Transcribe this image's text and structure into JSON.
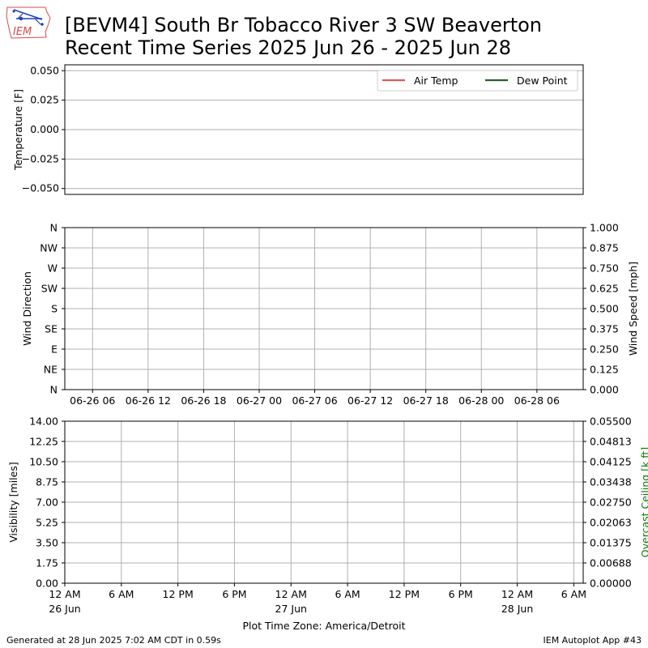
{
  "header": {
    "title_line1": "[BEVM4] South Br Tobacco River 3 SW Beaverton",
    "title_line2": "Recent Time Series 2025 Jun 26 - 2025 Jun 28",
    "logo_text": "IEM",
    "logo_icon": "iowa-state-outline-icon"
  },
  "footer": {
    "generated": "Generated at 28 Jun 2025 7:02 AM CDT in 0.59s",
    "app": "IEM Autoplot App #43"
  },
  "colors": {
    "air_temp": "#d9595b",
    "dew_point": "#2e5e2e",
    "grid": "#b0b0b0",
    "ceiling_label": "#008000",
    "logo": "#1f3fbf"
  },
  "chart_data": [
    {
      "type": "line",
      "panel": "temperature",
      "ylabel": "Temperature [F]",
      "ylim": [
        -0.055,
        0.055
      ],
      "yticks": [
        0.05,
        0.025,
        0.0,
        -0.025,
        -0.05
      ],
      "ytick_labels": [
        "0.050",
        "0.025",
        "0.000",
        "−0.025",
        "−0.050"
      ],
      "grid": "horizontal",
      "legend": {
        "placement": "top-right",
        "entries": [
          "Air Temp",
          "Dew Point"
        ]
      },
      "series": [
        {
          "name": "Air Temp",
          "values": []
        },
        {
          "name": "Dew Point",
          "values": []
        }
      ]
    },
    {
      "type": "scatter",
      "panel": "wind",
      "ylabel_left": "Wind Direction",
      "ylabel_right": "Wind Speed [mph]",
      "left_ticks": [
        "N",
        "NE",
        "E",
        "SE",
        "S",
        "SW",
        "W",
        "NW",
        "N"
      ],
      "right_ylim": [
        0,
        1
      ],
      "right_ticks": [
        "0.000",
        "0.125",
        "0.250",
        "0.375",
        "0.500",
        "0.625",
        "0.750",
        "0.875",
        "1.000"
      ],
      "xlim": [
        "2025-06-26 03:00",
        "2025-06-28 11:00"
      ],
      "x_ticks": [
        "2025-06-26 06:00",
        "2025-06-26 12:00",
        "2025-06-26 18:00",
        "2025-06-27 00:00",
        "2025-06-27 06:00",
        "2025-06-27 12:00",
        "2025-06-27 18:00",
        "2025-06-28 00:00",
        "2025-06-28 06:00"
      ],
      "x_tick_labels": [
        "06-26 06",
        "06-26 12",
        "06-26 18",
        "06-27 00",
        "06-27 06",
        "06-27 12",
        "06-27 18",
        "06-28 00",
        "06-28 06"
      ],
      "grid": "both",
      "series": []
    },
    {
      "type": "line",
      "panel": "visibility",
      "ylabel_left": "Visibility [miles]",
      "ylabel_right": "Overcast Ceiling [k ft]",
      "left_ylim": [
        0,
        14
      ],
      "left_ticks": [
        "0.00",
        "1.75",
        "3.50",
        "5.25",
        "7.00",
        "8.75",
        "10.50",
        "12.25",
        "14.00"
      ],
      "right_ylim": [
        0,
        0.055
      ],
      "right_ticks": [
        "0.00000",
        "0.00688",
        "0.01375",
        "0.02063",
        "0.02750",
        "0.03438",
        "0.04125",
        "0.04813",
        "0.05500"
      ],
      "xlim": [
        "2025-06-26 00:00",
        "2025-06-28 07:00"
      ],
      "x_ticks": [
        "2025-06-26 00:00",
        "2025-06-26 06:00",
        "2025-06-26 12:00",
        "2025-06-26 18:00",
        "2025-06-27 00:00",
        "2025-06-27 06:00",
        "2025-06-27 12:00",
        "2025-06-27 18:00",
        "2025-06-28 00:00",
        "2025-06-28 06:00"
      ],
      "x_tick_labels": [
        "12 AM",
        "6 AM",
        "12 PM",
        "6 PM",
        "12 AM",
        "6 AM",
        "12 PM",
        "6 PM",
        "12 AM",
        "6 AM"
      ],
      "x_tick_sublabels": [
        "26 Jun",
        "",
        "",
        "",
        "27 Jun",
        "",
        "",
        "",
        "28 Jun",
        ""
      ],
      "xlabel": "Plot Time Zone: America/Detroit",
      "grid": "both",
      "series": []
    }
  ]
}
